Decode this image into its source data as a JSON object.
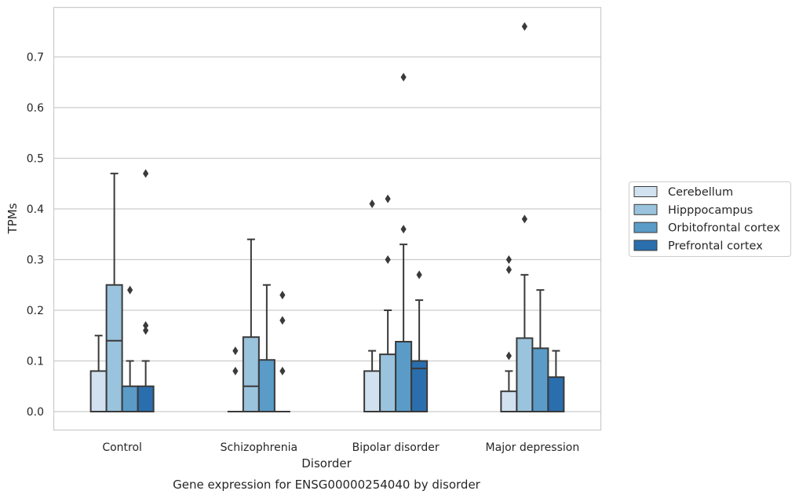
{
  "chart_data": {
    "type": "box",
    "title": "",
    "caption": "Gene expression for ENSG00000254040 by disorder",
    "xlabel": "Disorder",
    "ylabel": "TPMs",
    "ylim": [
      -0.036,
      0.8
    ],
    "yticks": [
      "0.0",
      "0.1",
      "0.2",
      "0.3",
      "0.4",
      "0.5",
      "0.6",
      "0.7"
    ],
    "grid": "horizontal",
    "legend_position": "right",
    "categories": [
      "Control",
      "Schizophrenia",
      "Bipolar disorder",
      "Major depression"
    ],
    "series": [
      {
        "name": "Cerebellum",
        "color": "#d2e1f0",
        "boxes": [
          {
            "q1": 0.0,
            "median": 0.0,
            "q3": 0.08,
            "whisker_low": 0.0,
            "whisker_high": 0.15,
            "outliers": []
          },
          {
            "q1": 0.0,
            "median": 0.0,
            "q3": 0.0,
            "whisker_low": 0.0,
            "whisker_high": 0.0,
            "outliers": [
              0.08,
              0.12
            ]
          },
          {
            "q1": 0.0,
            "median": 0.0,
            "q3": 0.08,
            "whisker_low": 0.0,
            "whisker_high": 0.12,
            "outliers": [
              0.41
            ]
          },
          {
            "q1": 0.0,
            "median": 0.0,
            "q3": 0.04,
            "whisker_low": 0.0,
            "whisker_high": 0.08,
            "outliers": [
              0.11,
              0.28,
              0.3
            ]
          }
        ]
      },
      {
        "name": "Hipppocampus",
        "color": "#9ac3dd",
        "boxes": [
          {
            "q1": 0.0,
            "median": 0.14,
            "q3": 0.25,
            "whisker_low": 0.0,
            "whisker_high": 0.47,
            "outliers": []
          },
          {
            "q1": 0.0,
            "median": 0.05,
            "q3": 0.147,
            "whisker_low": 0.0,
            "whisker_high": 0.34,
            "outliers": []
          },
          {
            "q1": 0.0,
            "median": 0.0,
            "q3": 0.113,
            "whisker_low": 0.0,
            "whisker_high": 0.2,
            "outliers": [
              0.3,
              0.42
            ]
          },
          {
            "q1": 0.0,
            "median": 0.0,
            "q3": 0.145,
            "whisker_low": 0.0,
            "whisker_high": 0.27,
            "outliers": [
              0.38,
              0.76
            ]
          }
        ]
      },
      {
        "name": "Orbitofrontal cortex",
        "color": "#5a9bc8",
        "boxes": [
          {
            "q1": 0.0,
            "median": 0.0,
            "q3": 0.05,
            "whisker_low": 0.0,
            "whisker_high": 0.1,
            "outliers": [
              0.24
            ]
          },
          {
            "q1": 0.0,
            "median": 0.0,
            "q3": 0.102,
            "whisker_low": 0.0,
            "whisker_high": 0.25,
            "outliers": []
          },
          {
            "q1": 0.0,
            "median": 0.0,
            "q3": 0.138,
            "whisker_low": 0.0,
            "whisker_high": 0.33,
            "outliers": [
              0.36,
              0.66
            ]
          },
          {
            "q1": 0.0,
            "median": 0.0,
            "q3": 0.125,
            "whisker_low": 0.0,
            "whisker_high": 0.24,
            "outliers": []
          }
        ]
      },
      {
        "name": "Prefrontal cortex",
        "color": "#2a6ead",
        "boxes": [
          {
            "q1": 0.0,
            "median": 0.0,
            "q3": 0.05,
            "whisker_low": 0.0,
            "whisker_high": 0.1,
            "outliers": [
              0.16,
              0.17,
              0.47
            ]
          },
          {
            "q1": 0.0,
            "median": 0.0,
            "q3": 0.0,
            "whisker_low": 0.0,
            "whisker_high": 0.0,
            "outliers": [
              0.08,
              0.18,
              0.23
            ]
          },
          {
            "q1": 0.0,
            "median": 0.085,
            "q3": 0.1,
            "whisker_low": 0.0,
            "whisker_high": 0.22,
            "outliers": [
              0.27
            ]
          },
          {
            "q1": 0.0,
            "median": 0.0,
            "q3": 0.068,
            "whisker_low": 0.0,
            "whisker_high": 0.12,
            "outliers": []
          }
        ]
      }
    ]
  }
}
